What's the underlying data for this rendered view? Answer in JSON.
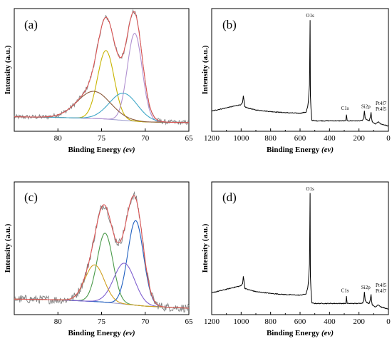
{
  "figure_labels": [
    "(a)",
    "(b)",
    "(c)",
    "(d)"
  ],
  "chart_data": [
    {
      "panel": "(a)",
      "type": "line",
      "xlabel": "Binding Energy",
      "xlabel_unit": "(ev)",
      "ylabel": "Intensity (a.u.)",
      "xlim": [
        85,
        65
      ],
      "xticks": [
        "80",
        "75",
        "70",
        "65"
      ],
      "yticks": "none",
      "series_colors": [
        "#7f7f7f",
        "#e05050",
        "#9999cc",
        "#c8b400",
        "#b090d0",
        "#40a8c8",
        "#8b5a3c",
        "#b78ad0"
      ],
      "baseline": [
        [
          85,
          0.09
        ],
        [
          80,
          0.085
        ],
        [
          75,
          0.075
        ],
        [
          70,
          0.05
        ],
        [
          65,
          0.045
        ]
      ],
      "peaks": [
        {
          "center": 74.5,
          "height": 0.53,
          "width": 0.95,
          "color": "#c8b400"
        },
        {
          "center": 71.2,
          "height": 0.68,
          "width": 0.85,
          "color": "#b090d0"
        },
        {
          "center": 72.5,
          "height": 0.21,
          "width": 1.6,
          "color": "#40a8c8"
        },
        {
          "center": 75.9,
          "height": 0.21,
          "width": 1.9,
          "color": "#8b5a3c"
        }
      ],
      "envelope": "sum",
      "raw_noise": 0.018
    },
    {
      "panel": "(b)",
      "type": "line",
      "xlabel": "Binding Energy",
      "xlabel_unit": "(ev)",
      "ylabel": "Intensity (a.u.)",
      "xlim": [
        1200,
        0
      ],
      "xticks": [
        "1200",
        "1000",
        "800",
        "600",
        "400",
        "200",
        "0"
      ],
      "yticks": "none",
      "series_colors": [
        "#000000"
      ],
      "x": [
        1200,
        1100,
        1000,
        990,
        985,
        978,
        975,
        960,
        900,
        800,
        700,
        600,
        560,
        548,
        543,
        536,
        532,
        530,
        526,
        520,
        500,
        400,
        300,
        290,
        285,
        280,
        270,
        200,
        175,
        168,
        163,
        158,
        150,
        130,
        122,
        118,
        114,
        110,
        90,
        70,
        50,
        20,
        0
      ],
      "y": [
        0.16,
        0.19,
        0.22,
        0.24,
        0.3,
        0.23,
        0.2,
        0.19,
        0.17,
        0.155,
        0.145,
        0.14,
        0.15,
        0.2,
        0.26,
        0.4,
        1.0,
        0.3,
        0.19,
        0.075,
        0.07,
        0.07,
        0.07,
        0.07,
        0.13,
        0.07,
        0.07,
        0.07,
        0.075,
        0.1,
        0.16,
        0.1,
        0.08,
        0.07,
        0.11,
        0.15,
        0.09,
        0.06,
        0.04,
        0.06,
        0.04,
        0.03,
        0.02
      ],
      "peak_labels": [
        {
          "text": "O1s",
          "x": 532,
          "y": 1.0
        },
        {
          "text": "C1s",
          "x": 285,
          "y": 0.13
        },
        {
          "text": "Si2p",
          "x": 163,
          "y": 0.16
        },
        {
          "text": "Pt4f7",
          "x": 118,
          "y": 0.15
        },
        {
          "text": "Pt4f5",
          "x": 118,
          "y": 0.15
        }
      ]
    },
    {
      "panel": "(c)",
      "type": "line",
      "xlabel": "Binding Energy",
      "xlabel_unit": "(ev)",
      "ylabel": "Intensity (a.u.)",
      "xlim": [
        85,
        65
      ],
      "xticks": [
        "80",
        "75",
        "70",
        "65"
      ],
      "yticks": "none",
      "series_colors": [
        "#7f7f7f",
        "#e05050",
        "#9999cc",
        "#4a9a4a",
        "#2060c0",
        "#8060d0",
        "#d0a020",
        "#3a3aa0"
      ],
      "baseline": [
        [
          85,
          0.09
        ],
        [
          80,
          0.085
        ],
        [
          75,
          0.07
        ],
        [
          70,
          0.04
        ],
        [
          65,
          0.025
        ]
      ],
      "peaks": [
        {
          "center": 74.6,
          "height": 0.49,
          "width": 0.9,
          "color": "#4a9a4a"
        },
        {
          "center": 71.1,
          "height": 0.6,
          "width": 0.9,
          "color": "#2060c0"
        },
        {
          "center": 72.4,
          "height": 0.29,
          "width": 1.2,
          "color": "#8060d0"
        },
        {
          "center": 75.8,
          "height": 0.26,
          "width": 1.1,
          "color": "#d0a020"
        }
      ],
      "envelope": "sum",
      "raw_noise": 0.03
    },
    {
      "panel": "(d)",
      "type": "line",
      "xlabel": "Binding Energy",
      "xlabel_unit": "(ev)",
      "ylabel": "Intensity (a.u.)",
      "xlim": [
        1200,
        0
      ],
      "xticks": [
        "1200",
        "1000",
        "800",
        "600",
        "400",
        "200",
        "0"
      ],
      "yticks": "none",
      "series_colors": [
        "#000000"
      ],
      "x": [
        1200,
        1100,
        1000,
        990,
        985,
        978,
        975,
        960,
        900,
        800,
        700,
        600,
        560,
        548,
        543,
        536,
        532,
        530,
        526,
        520,
        500,
        400,
        300,
        290,
        285,
        280,
        270,
        200,
        175,
        168,
        163,
        158,
        150,
        130,
        122,
        118,
        114,
        110,
        90,
        70,
        50,
        20,
        0
      ],
      "y": [
        0.16,
        0.19,
        0.22,
        0.24,
        0.3,
        0.23,
        0.2,
        0.19,
        0.17,
        0.155,
        0.145,
        0.14,
        0.15,
        0.2,
        0.26,
        0.4,
        1.0,
        0.3,
        0.19,
        0.075,
        0.07,
        0.07,
        0.07,
        0.07,
        0.13,
        0.07,
        0.07,
        0.07,
        0.075,
        0.1,
        0.17,
        0.1,
        0.08,
        0.07,
        0.11,
        0.15,
        0.09,
        0.06,
        0.04,
        0.06,
        0.04,
        0.03,
        0.02
      ],
      "peak_labels": [
        {
          "text": "O1s",
          "x": 532,
          "y": 1.0
        },
        {
          "text": "C1s",
          "x": 285,
          "y": 0.13
        },
        {
          "text": "Si2p",
          "x": 163,
          "y": 0.17
        },
        {
          "text": "Pt4f5",
          "x": 118,
          "y": 0.15
        },
        {
          "text": "Pt4f7",
          "x": 118,
          "y": 0.15
        }
      ]
    }
  ]
}
